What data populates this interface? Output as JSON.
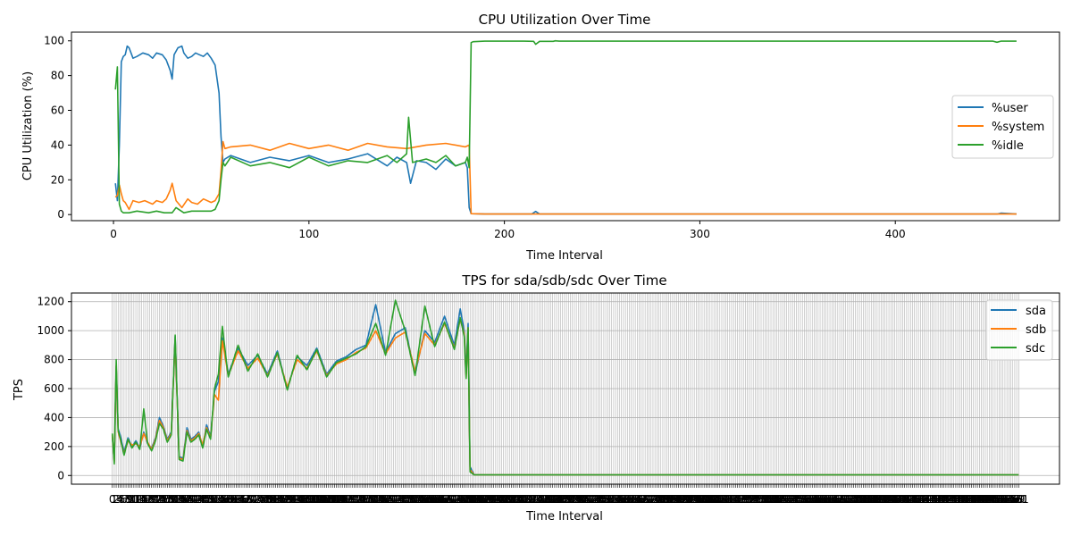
{
  "chart_data": [
    {
      "type": "line",
      "title": "CPU Utilization Over Time",
      "xlabel": "Time Interval",
      "ylabel": "CPU Utilization (%)",
      "xlim": [
        -21.5,
        484
      ],
      "ylim": [
        -3.5,
        105
      ],
      "xticks": [
        0,
        100,
        200,
        300,
        400
      ],
      "yticks": [
        0,
        20,
        40,
        60,
        80,
        100
      ],
      "grid": false,
      "legend_position": "center-right",
      "n_points": 462,
      "series": [
        {
          "name": "%user",
          "color": "#1f77b4",
          "x": [
            1,
            2,
            3,
            4,
            5,
            6,
            7,
            8,
            10,
            12,
            15,
            18,
            20,
            22,
            25,
            27,
            29,
            30,
            31,
            33,
            35,
            36,
            38,
            40,
            42,
            44,
            46,
            48,
            50,
            52,
            54,
            55,
            56,
            57,
            60,
            70,
            80,
            90,
            100,
            110,
            120,
            130,
            140,
            145,
            150,
            152,
            155,
            160,
            165,
            170,
            175,
            180,
            181,
            182,
            183,
            190,
            200,
            214,
            216,
            218,
            300,
            400,
            452,
            454,
            462
          ],
          "y": [
            18,
            8,
            40,
            88,
            91,
            92,
            97,
            96,
            90,
            91,
            93,
            92,
            90,
            93,
            92,
            89,
            83,
            78,
            92,
            96,
            97,
            93,
            90,
            91,
            93,
            92,
            91,
            93,
            90,
            86,
            70,
            45,
            30,
            32,
            34,
            30,
            33,
            31,
            34,
            30,
            32,
            35,
            28,
            33,
            30,
            18,
            31,
            30,
            26,
            32,
            28,
            30,
            27,
            4,
            0.5,
            0.3,
            0.3,
            0.3,
            1.8,
            0.3,
            0.3,
            0.3,
            0.3,
            0.8,
            0.3
          ]
        },
        {
          "name": "%system",
          "color": "#ff7f0e",
          "x": [
            1,
            2,
            3,
            4,
            5,
            6,
            8,
            10,
            13,
            16,
            20,
            22,
            25,
            27,
            29,
            30,
            32,
            35,
            38,
            40,
            43,
            46,
            50,
            52,
            54,
            55,
            56,
            57,
            60,
            70,
            80,
            90,
            100,
            110,
            120,
            130,
            140,
            150,
            160,
            170,
            180,
            182,
            183,
            190,
            200,
            300,
            400,
            462
          ],
          "y": [
            10,
            11,
            17,
            12,
            8,
            7,
            3,
            8,
            7,
            8,
            6,
            8,
            7,
            9,
            14,
            18,
            8,
            4,
            9,
            7,
            6,
            9,
            7,
            8,
            12,
            25,
            42,
            38,
            39,
            40,
            37,
            41,
            38,
            40,
            37,
            41,
            39,
            38,
            40,
            41,
            39,
            40,
            0.5,
            0.3,
            0.3,
            0.3,
            0.3,
            0.3
          ]
        },
        {
          "name": "%idle",
          "color": "#2ca02c",
          "x": [
            1,
            2,
            3,
            4,
            5,
            8,
            12,
            18,
            22,
            26,
            30,
            32,
            36,
            40,
            46,
            50,
            52,
            54,
            55,
            56,
            57,
            60,
            70,
            80,
            90,
            100,
            110,
            120,
            130,
            140,
            145,
            150,
            151,
            153,
            160,
            165,
            170,
            175,
            180,
            181,
            182,
            183,
            184,
            190,
            200,
            210,
            215,
            216,
            218,
            225,
            226,
            228,
            300,
            400,
            450,
            452,
            454,
            462
          ],
          "y": [
            72,
            85,
            6,
            2,
            1,
            1,
            2,
            1,
            2,
            1,
            1,
            4,
            1,
            2,
            2,
            2,
            3,
            8,
            20,
            30,
            28,
            33,
            28,
            30,
            27,
            33,
            28,
            31,
            30,
            34,
            30,
            35,
            56,
            30,
            32,
            30,
            34,
            28,
            30,
            33,
            27,
            99,
            99.5,
            99.8,
            99.8,
            99.8,
            99.7,
            98,
            99.7,
            99.7,
            100,
            99.8,
            99.8,
            99.8,
            99.8,
            99.2,
            99.8,
            99.8
          ]
        }
      ]
    },
    {
      "type": "line",
      "title": "TPS for sda/sdb/sdc Over Time",
      "xlabel": "Time Interval",
      "ylabel": "TPS",
      "ylim": [
        -60,
        1260
      ],
      "yticks": [
        0,
        200,
        400,
        600,
        800,
        1000,
        1200
      ],
      "grid": true,
      "legend_position": "top-right",
      "n_points": 462,
      "series": [
        {
          "name": "sda",
          "color": "#1f77b4",
          "x": [
            1,
            2,
            3,
            4,
            5,
            7,
            9,
            11,
            13,
            15,
            17,
            19,
            21,
            23,
            25,
            27,
            29,
            31,
            33,
            35,
            37,
            39,
            41,
            43,
            45,
            47,
            49,
            51,
            53,
            55,
            57,
            60,
            65,
            70,
            75,
            80,
            85,
            90,
            95,
            100,
            105,
            110,
            115,
            120,
            125,
            130,
            135,
            140,
            145,
            150,
            155,
            160,
            165,
            170,
            175,
            178,
            180,
            181,
            182,
            183,
            185,
            200,
            300,
            400,
            462
          ],
          "y": [
            270,
            100,
            750,
            320,
            280,
            160,
            260,
            200,
            240,
            190,
            300,
            220,
            190,
            260,
            400,
            340,
            250,
            300,
            960,
            130,
            120,
            330,
            250,
            270,
            300,
            200,
            350,
            270,
            580,
            650,
            950,
            700,
            880,
            760,
            830,
            700,
            860,
            600,
            820,
            760,
            880,
            700,
            790,
            820,
            870,
            900,
            1180,
            850,
            980,
            1020,
            700,
            1000,
            920,
            1100,
            900,
            1150,
            1000,
            700,
            1050,
            60,
            5,
            5,
            5,
            5,
            5
          ]
        },
        {
          "name": "sdb",
          "color": "#ff7f0e",
          "x": [
            1,
            2,
            3,
            4,
            5,
            7,
            9,
            11,
            13,
            15,
            17,
            19,
            21,
            23,
            25,
            27,
            29,
            31,
            33,
            35,
            37,
            39,
            41,
            43,
            45,
            47,
            49,
            51,
            53,
            55,
            57,
            60,
            65,
            70,
            75,
            80,
            85,
            90,
            95,
            100,
            105,
            110,
            115,
            120,
            125,
            130,
            135,
            140,
            145,
            150,
            155,
            160,
            165,
            170,
            175,
            178,
            180,
            181,
            182,
            183,
            185,
            200,
            300,
            400,
            462
          ],
          "y": [
            280,
            90,
            760,
            300,
            250,
            150,
            240,
            210,
            220,
            200,
            290,
            230,
            180,
            250,
            380,
            330,
            240,
            290,
            940,
            120,
            110,
            310,
            240,
            260,
            290,
            210,
            330,
            260,
            560,
            520,
            930,
            690,
            860,
            740,
            810,
            690,
            840,
            610,
            800,
            740,
            860,
            690,
            770,
            800,
            850,
            880,
            1000,
            840,
            950,
            990,
            720,
            980,
            900,
            1050,
            880,
            1080,
            980,
            680,
            1020,
            40,
            5,
            5,
            5,
            5,
            5
          ]
        },
        {
          "name": "sdc",
          "color": "#2ca02c",
          "x": [
            1,
            2,
            3,
            4,
            5,
            7,
            9,
            11,
            13,
            15,
            17,
            19,
            21,
            23,
            25,
            27,
            29,
            31,
            33,
            35,
            37,
            39,
            41,
            43,
            45,
            47,
            49,
            51,
            53,
            55,
            57,
            60,
            65,
            70,
            75,
            80,
            85,
            90,
            95,
            100,
            105,
            110,
            115,
            120,
            125,
            130,
            135,
            140,
            145,
            150,
            155,
            160,
            165,
            170,
            175,
            178,
            180,
            181,
            182,
            183,
            185,
            200,
            300,
            400,
            462
          ],
          "y": [
            290,
            80,
            800,
            310,
            260,
            140,
            250,
            190,
            230,
            180,
            460,
            220,
            170,
            240,
            360,
            320,
            230,
            280,
            970,
            110,
            100,
            300,
            230,
            250,
            280,
            190,
            320,
            250,
            600,
            700,
            1030,
            680,
            900,
            720,
            840,
            680,
            850,
            590,
            830,
            730,
            870,
            680,
            780,
            810,
            840,
            890,
            1050,
            830,
            1210,
            1000,
            690,
            1170,
            890,
            1060,
            870,
            1090,
            960,
            670,
            1020,
            25,
            5,
            5,
            5,
            5,
            5
          ]
        }
      ]
    }
  ]
}
